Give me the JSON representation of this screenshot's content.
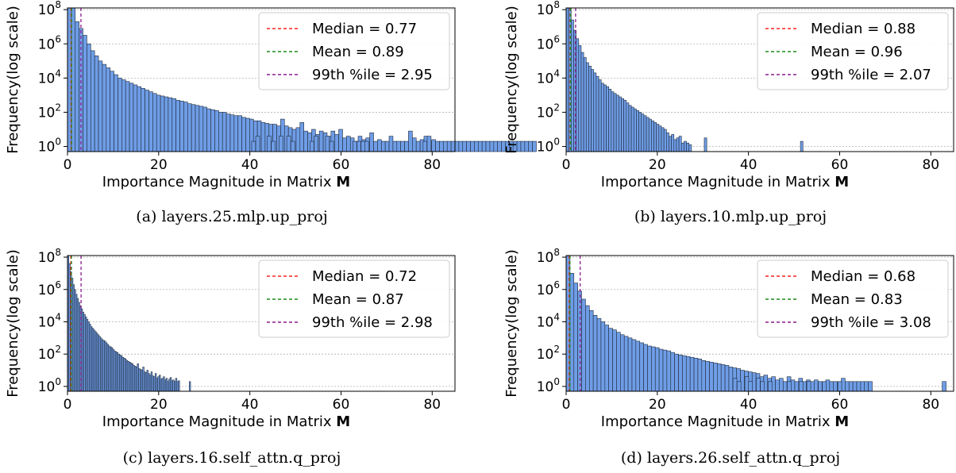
{
  "figure": {
    "xlabel_prefix": "Importance Magnitude in Matrix ",
    "xlabel_bold": "M",
    "ylabel": "Frequency(log scale)",
    "colors": {
      "bar_fill": "#6f9de6",
      "bar_stroke": "#1f2a3a",
      "median": "#ff2020",
      "mean": "#1a8c1a",
      "p99": "#8b1a8b",
      "grid": "#b0b0b0"
    }
  },
  "chart_data": [
    {
      "type": "bar",
      "caption": "(a) layers.25.mlp.up_proj",
      "xlim": [
        0,
        85
      ],
      "ylim_log10": [
        -0.3,
        8.1
      ],
      "x_ticks": [
        0,
        20,
        40,
        60,
        80
      ],
      "y_ticks": [
        {
          "exp": 0,
          "label": "0"
        },
        {
          "exp": 2,
          "label": "2"
        },
        {
          "exp": 4,
          "label": "4"
        },
        {
          "exp": 6,
          "label": "6"
        },
        {
          "exp": 8,
          "label": "8"
        }
      ],
      "scale": "log",
      "grid": "y",
      "legend": "top-right",
      "bin_width": 0.85,
      "bins_log10": [
        8.1,
        8.1,
        7.3,
        6.9,
        6.5,
        6.0,
        5.6,
        5.3,
        5.0,
        4.8,
        4.6,
        4.4,
        4.2,
        4.0,
        3.9,
        3.8,
        3.7,
        3.6,
        3.5,
        3.4,
        3.3,
        3.2,
        3.1,
        3.0,
        2.95,
        2.9,
        2.85,
        2.8,
        2.7,
        2.65,
        2.6,
        2.5,
        2.45,
        2.4,
        2.35,
        2.3,
        2.2,
        2.15,
        2.1,
        2.0,
        2.0,
        1.9,
        1.85,
        1.8,
        1.8,
        1.7,
        1.65,
        1.6,
        1.5,
        1.5,
        1.4,
        1.35,
        1.3,
        1.3,
        1.2,
        1.6,
        1.2,
        1.1,
        1.0,
        1.1,
        1.4,
        0.9,
        0.8,
        1.0,
        0.7,
        0.9,
        0.8,
        0.6,
        0.9,
        0.7,
        1.0,
        0.5,
        0.6,
        0.5,
        0.3,
        0.6,
        0.4,
        0.5,
        0.8,
        0.3,
        0.4,
        0.3,
        0.3,
        0.6,
        0.3,
        0.3,
        0.3,
        0.3,
        0.9,
        0.5,
        0.3,
        0.4,
        0.6,
        0.3,
        0.4,
        0.3,
        0.3,
        0.3,
        0.3,
        0.3,
        0.3,
        0.3,
        0.3,
        0.3,
        0.3,
        0.3,
        0.3,
        0.3,
        0.3,
        0.3,
        0.3,
        0.3,
        0.3,
        0.3,
        0.3,
        0.3,
        0.3,
        0.3,
        0.3,
        0.3,
        0.3
      ],
      "bins_extra": [
        [
          40.4,
          0.3
        ],
        [
          41.3,
          0.6
        ],
        [
          43.8,
          0.6
        ],
        [
          44.7,
          0.3
        ],
        [
          46.4,
          0.6
        ],
        [
          48.1,
          0.6
        ],
        [
          49.0,
          0.3
        ],
        [
          53.2,
          0.3
        ],
        [
          54.1,
          0.6
        ],
        [
          56.6,
          0.6
        ],
        [
          57.5,
          0.3
        ],
        [
          62.6,
          0.3
        ],
        [
          63.5,
          0.3
        ],
        [
          64.4,
          0.3
        ],
        [
          65.2,
          0.3
        ],
        [
          78.0,
          0.3
        ],
        [
          78.9,
          0.6
        ]
      ],
      "lines": [
        {
          "name": "Median = 0.77",
          "x": 0.77,
          "color": "median"
        },
        {
          "name": "Mean = 0.89",
          "x": 0.89,
          "color": "mean"
        },
        {
          "name": "99th %ile = 2.95",
          "x": 2.95,
          "color": "p99"
        }
      ]
    },
    {
      "type": "bar",
      "caption": "(b) layers.10.mlp.up_proj",
      "xlim": [
        0,
        85
      ],
      "ylim_log10": [
        -0.3,
        8.1
      ],
      "x_ticks": [
        0,
        20,
        40,
        60,
        80
      ],
      "y_ticks": [
        {
          "exp": 0,
          "label": "0"
        },
        {
          "exp": 2,
          "label": "2"
        },
        {
          "exp": 4,
          "label": "4"
        },
        {
          "exp": 6,
          "label": "6"
        },
        {
          "exp": 8,
          "label": "8"
        }
      ],
      "scale": "log",
      "grid": "y",
      "legend": "top-right",
      "bin_width": 0.55,
      "bins_log10": [
        8.1,
        8.1,
        7.4,
        6.8,
        6.3,
        5.9,
        5.5,
        5.2,
        4.9,
        4.7,
        4.5,
        4.3,
        4.1,
        3.9,
        3.7,
        3.6,
        3.5,
        3.35,
        3.2,
        3.1,
        3.0,
        2.9,
        2.8,
        2.7,
        2.55,
        2.4,
        2.3,
        2.2,
        2.1,
        2.0,
        1.9,
        1.8,
        1.7,
        1.6,
        1.5,
        1.4,
        1.3,
        1.2,
        1.1,
        1.0,
        0.8,
        0.6,
        0.7,
        0.4,
        0.5,
        0.6,
        0.2,
        0.3,
        0.2,
        0.1
      ],
      "bins_extra": [
        [
          30.3,
          0.5
        ],
        [
          51.4,
          0.3
        ]
      ],
      "lines": [
        {
          "name": "Median = 0.88",
          "x": 0.88,
          "color": "median"
        },
        {
          "name": "Mean = 0.96",
          "x": 0.96,
          "color": "mean"
        },
        {
          "name": "99th %ile = 2.07",
          "x": 2.07,
          "color": "p99"
        }
      ]
    },
    {
      "type": "bar",
      "caption": "(c) layers.16.self_attn.q_proj",
      "xlim": [
        0,
        85
      ],
      "ylim_log10": [
        -0.3,
        8.1
      ],
      "x_ticks": [
        0,
        20,
        40,
        60,
        80
      ],
      "y_ticks": [
        {
          "exp": 0,
          "label": "0"
        },
        {
          "exp": 2,
          "label": "2"
        },
        {
          "exp": 4,
          "label": "4"
        },
        {
          "exp": 6,
          "label": "6"
        },
        {
          "exp": 8,
          "label": "8"
        }
      ],
      "scale": "log",
      "grid": "y",
      "legend": "top-right",
      "bin_width": 0.3,
      "bins_log10": [
        8.1,
        7.6,
        7.1,
        6.7,
        6.3,
        6.0,
        5.7,
        5.45,
        5.2,
        5.0,
        4.8,
        4.6,
        4.45,
        4.3,
        4.15,
        4.0,
        3.85,
        3.7,
        3.6,
        3.5,
        3.4,
        3.3,
        3.2,
        3.1,
        3.0,
        2.9,
        2.85,
        2.8,
        2.7,
        2.6,
        2.5,
        2.45,
        2.4,
        2.3,
        2.2,
        2.15,
        2.1,
        2.0,
        1.95,
        1.9,
        1.8,
        1.75,
        1.7,
        1.6,
        1.55,
        1.5,
        1.45,
        1.4,
        1.3,
        1.25,
        1.2,
        1.4,
        1.1,
        1.05,
        1.0,
        1.2,
        0.9,
        0.85,
        1.0,
        0.8,
        0.7,
        0.9,
        0.65,
        0.6,
        0.8,
        0.5,
        0.6,
        0.7,
        0.45,
        0.5,
        0.6,
        0.4,
        0.5,
        0.3,
        0.45,
        0.55,
        0.35,
        0.4,
        0.3,
        0.5,
        0.3,
        0.35
      ],
      "bins_extra": [
        [
          26.7,
          0.3
        ]
      ],
      "lines": [
        {
          "name": "Median = 0.72",
          "x": 0.72,
          "color": "median"
        },
        {
          "name": "Mean = 0.87",
          "x": 0.87,
          "color": "mean"
        },
        {
          "name": "99th %ile = 2.98",
          "x": 2.98,
          "color": "p99"
        }
      ]
    },
    {
      "type": "bar",
      "caption": "(d) layers.26.self_attn.q_proj",
      "xlim": [
        0,
        85
      ],
      "ylim_log10": [
        -0.3,
        8.1
      ],
      "x_ticks": [
        0,
        20,
        40,
        60,
        80
      ],
      "y_ticks": [
        {
          "exp": 0,
          "label": "0"
        },
        {
          "exp": 2,
          "label": "2"
        },
        {
          "exp": 4,
          "label": "4"
        },
        {
          "exp": 6,
          "label": "6"
        },
        {
          "exp": 8,
          "label": "8"
        }
      ],
      "scale": "log",
      "grid": "y",
      "legend": "top-right",
      "bin_width": 0.85,
      "bins_log10": [
        8.1,
        7.0,
        6.4,
        5.9,
        5.4,
        5.0,
        4.7,
        4.4,
        4.2,
        4.0,
        3.8,
        3.6,
        3.5,
        3.35,
        3.2,
        3.1,
        3.0,
        2.9,
        2.8,
        2.7,
        2.6,
        2.5,
        2.45,
        2.4,
        2.3,
        2.25,
        2.2,
        2.1,
        2.0,
        1.95,
        1.9,
        1.85,
        1.8,
        1.75,
        1.7,
        1.6,
        1.55,
        1.5,
        1.45,
        1.4,
        1.35,
        1.3,
        1.2,
        1.15,
        1.1,
        1.0,
        0.95,
        0.9,
        0.85,
        0.8,
        0.6,
        0.7,
        0.5,
        0.6,
        0.4,
        0.5,
        0.3,
        0.6,
        0.4,
        0.3,
        0.5,
        0.3,
        0.4,
        0.3,
        0.4,
        0.3,
        0.3,
        0.4,
        0.3,
        0.3,
        0.3,
        0.5,
        0.3,
        0.3,
        0.3,
        0.3,
        0.3,
        0.3,
        0.3
      ],
      "bins_extra": [
        [
          36.6,
          0.5
        ],
        [
          37.5,
          0.3
        ],
        [
          39.2,
          0.6
        ],
        [
          40.0,
          0.3
        ],
        [
          41.7,
          0.5
        ],
        [
          42.6,
          0.3
        ],
        [
          44.3,
          0.3
        ],
        [
          48.5,
          0.3
        ],
        [
          51.1,
          0.3
        ],
        [
          52.8,
          0.3
        ],
        [
          55.3,
          0.3
        ],
        [
          56.2,
          0.3
        ],
        [
          59.6,
          0.3
        ],
        [
          82.5,
          0.3
        ]
      ],
      "lines": [
        {
          "name": "Median = 0.68",
          "x": 0.68,
          "color": "median"
        },
        {
          "name": "Mean = 0.83",
          "x": 0.83,
          "color": "mean"
        },
        {
          "name": "99th %ile = 3.08",
          "x": 3.08,
          "color": "p99"
        }
      ]
    }
  ]
}
